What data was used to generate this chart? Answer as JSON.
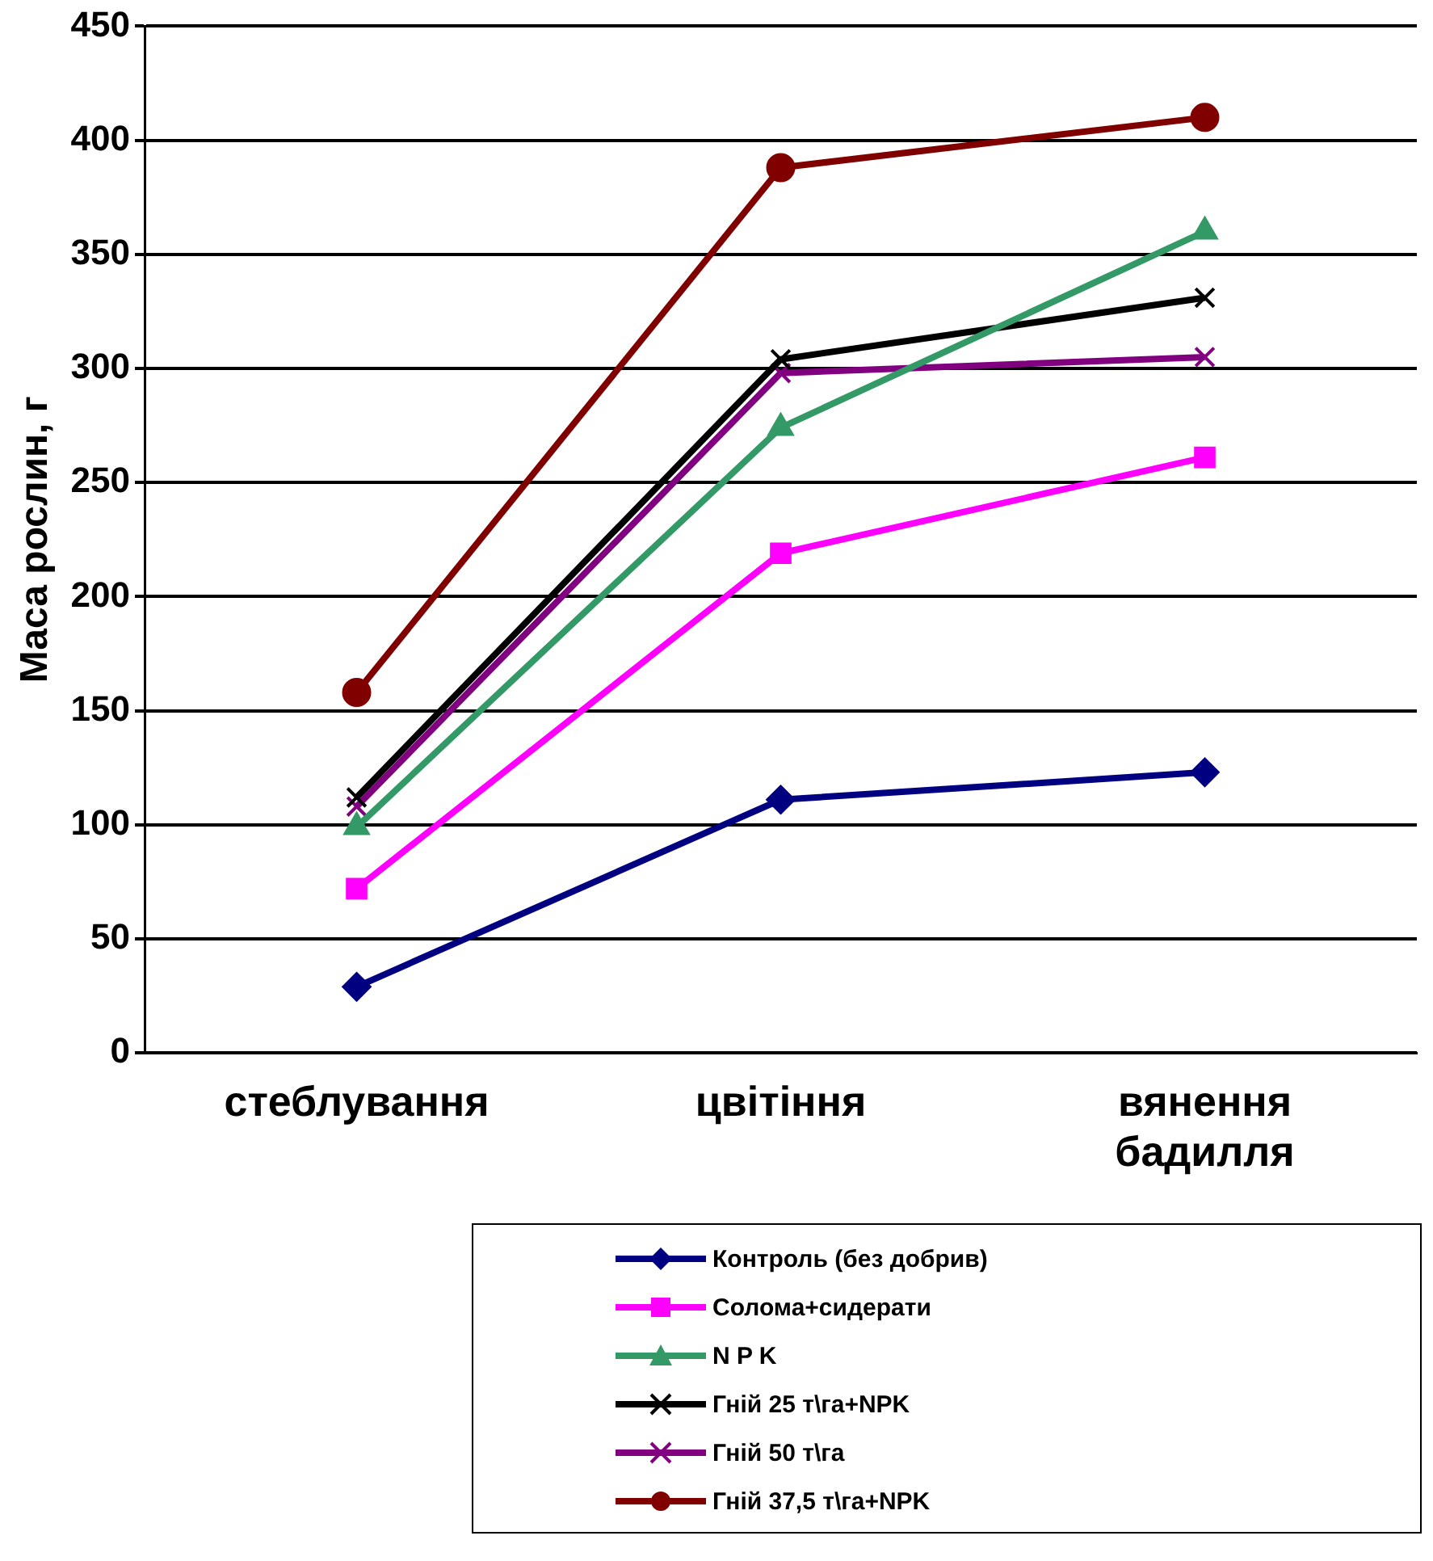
{
  "chart_data": {
    "type": "line",
    "ylabel": "Маса рослин, г",
    "categories": [
      "стеблування",
      "цвітіння",
      "вянення бадилля"
    ],
    "series": [
      {
        "name": "Контроль (без добрив)",
        "color": "#000080",
        "marker": "diamond",
        "values": [
          29,
          111,
          123
        ]
      },
      {
        "name": "Солома+сидерати",
        "color": "#ff00ff",
        "marker": "square",
        "values": [
          72,
          219,
          261
        ]
      },
      {
        "name": "N P K",
        "color": "#339966",
        "marker": "triangle",
        "values": [
          99,
          274,
          360
        ]
      },
      {
        "name": "Гній 25 т\\га+NPK",
        "color": "#000000",
        "marker": "cross",
        "values": [
          112,
          304,
          331
        ]
      },
      {
        "name": "Гній 50 т\\га",
        "color": "#800080",
        "marker": "cross",
        "values": [
          108,
          298,
          305
        ]
      },
      {
        "name": "Гній 37,5 т\\га+NPK",
        "color": "#800000",
        "marker": "circle",
        "values": [
          158,
          388,
          410
        ]
      }
    ],
    "ylim": [
      0,
      450
    ],
    "yticks": [
      0,
      50,
      100,
      150,
      200,
      250,
      300,
      350,
      400,
      450
    ],
    "grid": "y",
    "legend": "bottom",
    "line_style": "solid"
  }
}
